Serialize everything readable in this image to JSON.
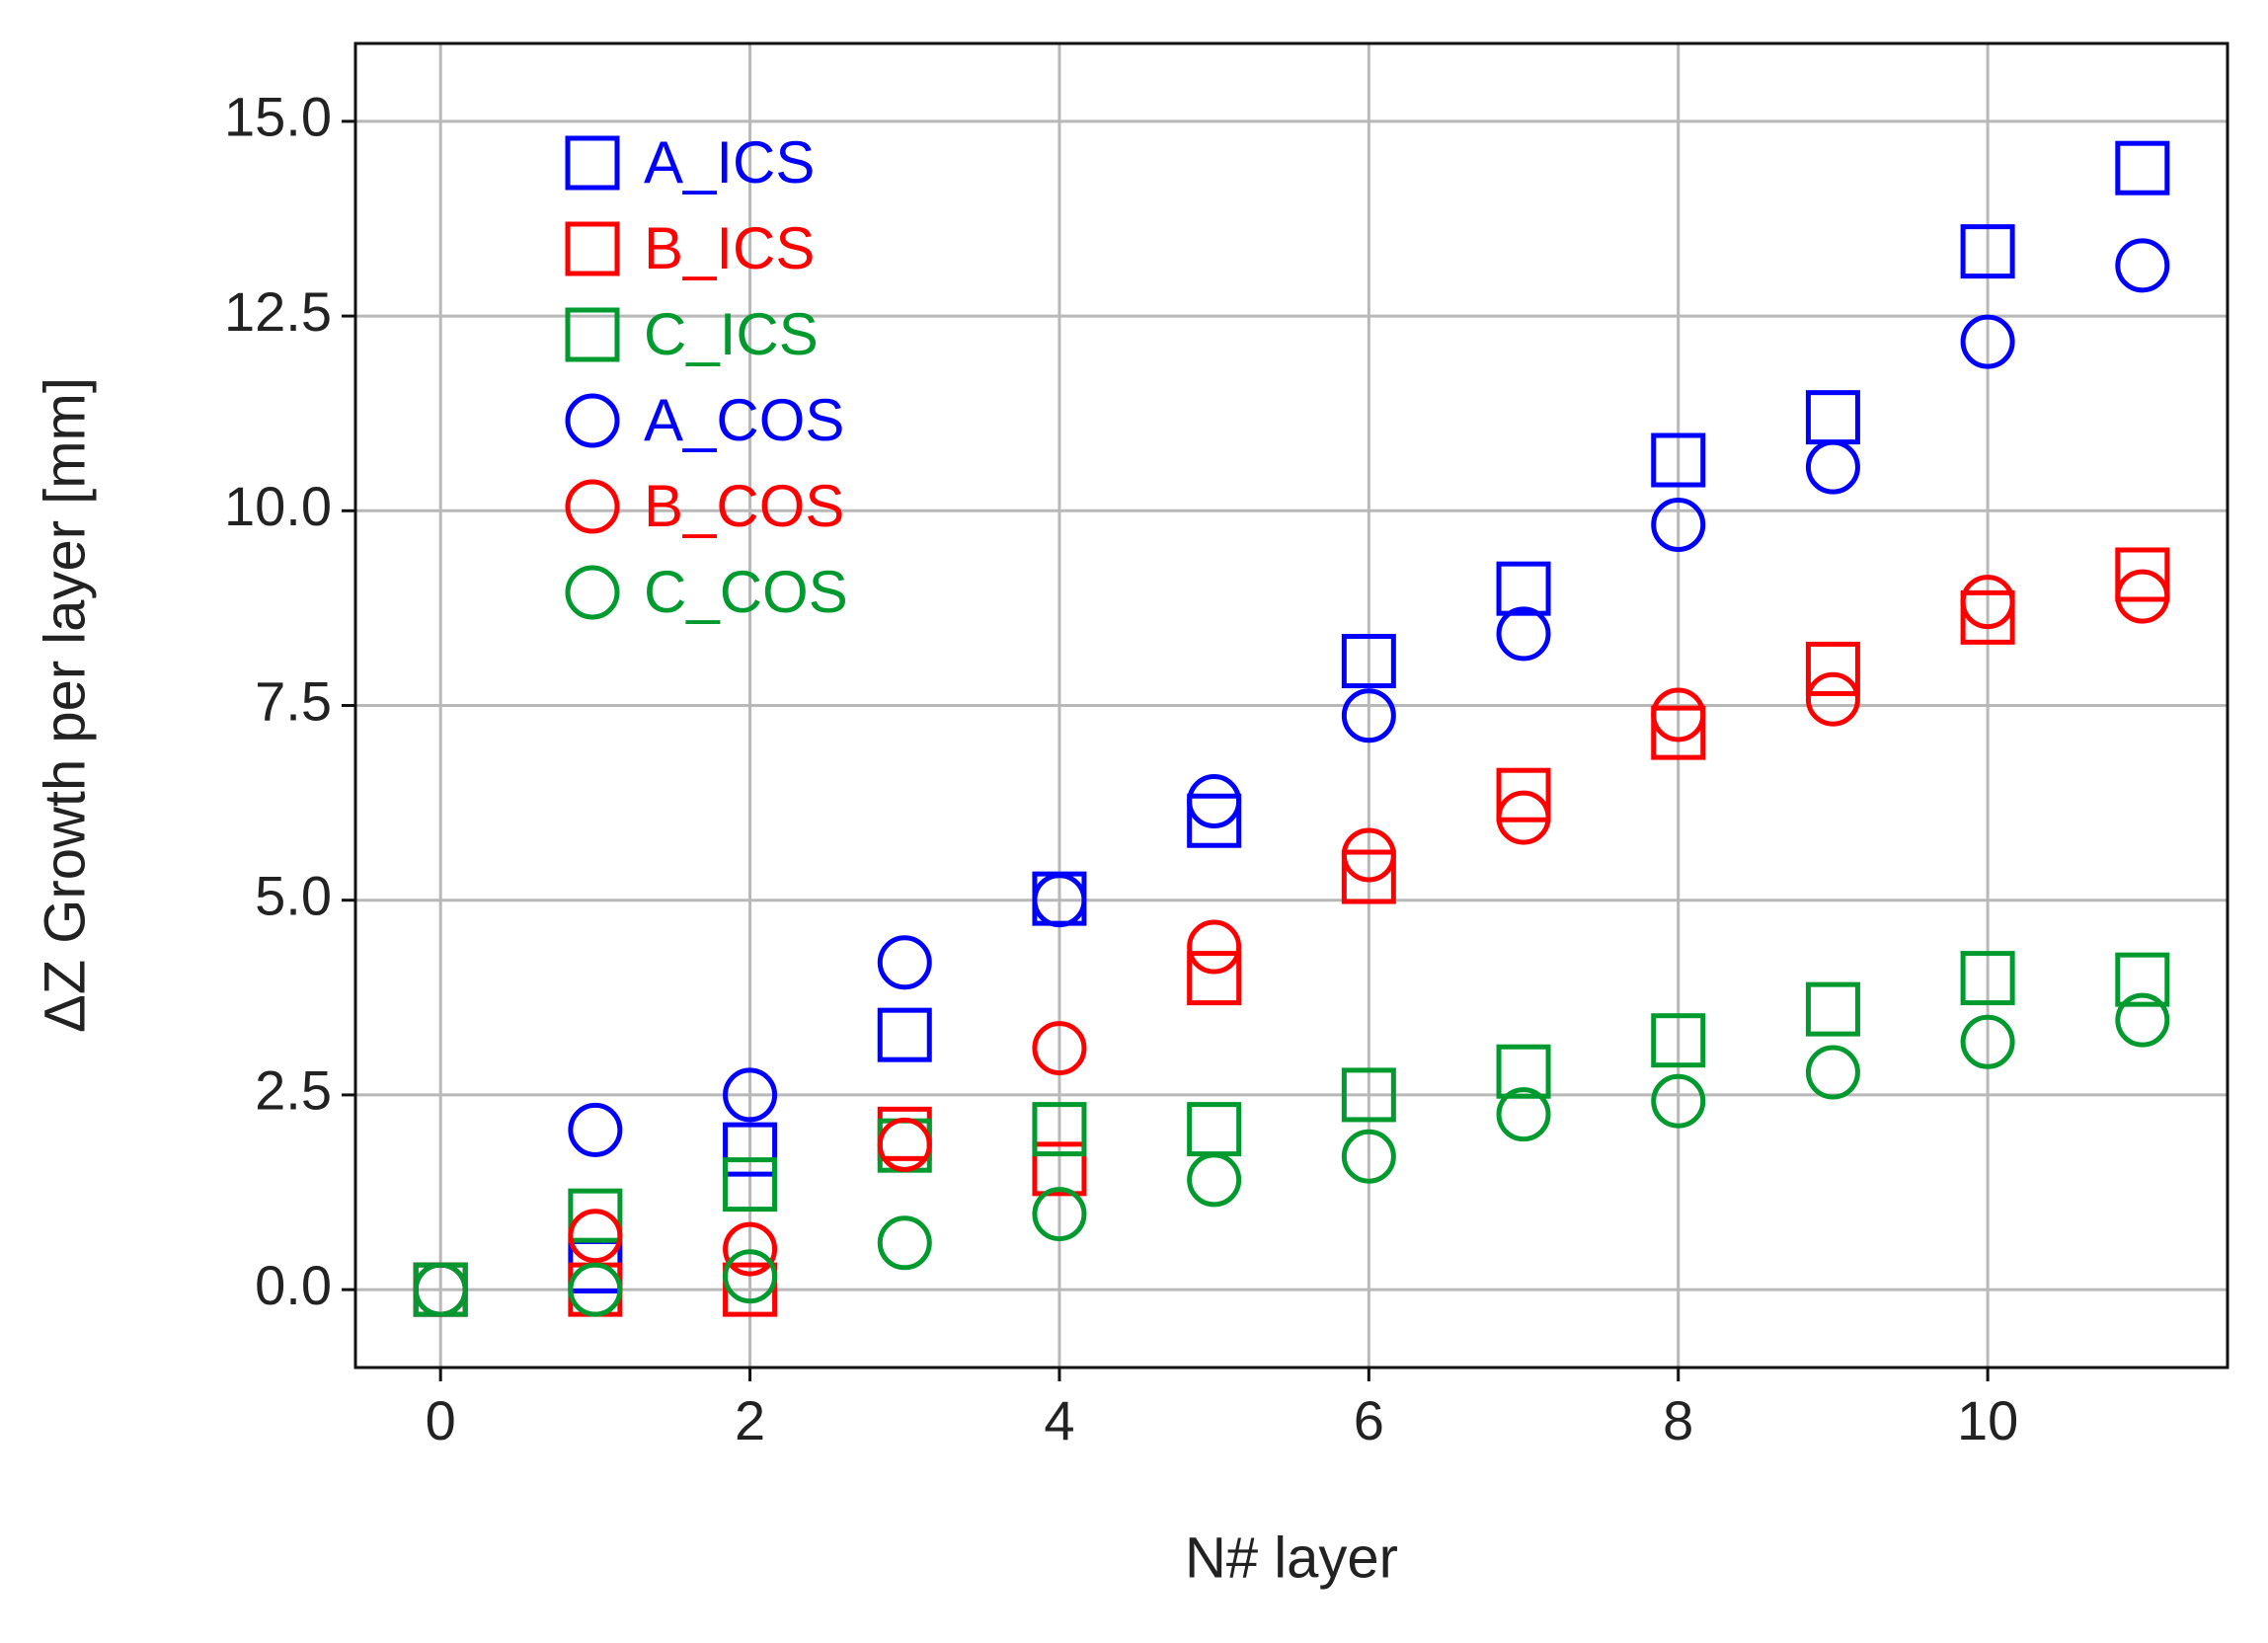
{
  "chart_data": {
    "type": "scatter",
    "x_label": "N# layer",
    "y_label": "ΔZ Growth per layer [mm]",
    "x": [
      0,
      1,
      2,
      3,
      4,
      5,
      6,
      7,
      8,
      9,
      10,
      11
    ],
    "series": [
      {
        "name": "A_ICS",
        "color": "#0000ff",
        "marker": "square",
        "values": [
          0,
          0.3,
          1.8,
          3.27,
          5.02,
          6.02,
          8.07,
          9.0,
          10.65,
          11.2,
          13.33,
          14.4
        ]
      },
      {
        "name": "B_ICS",
        "color": "#ff0000",
        "marker": "square",
        "values": [
          0,
          0,
          0,
          2.0,
          1.55,
          4.0,
          5.3,
          6.35,
          7.15,
          7.97,
          8.63,
          9.18
        ]
      },
      {
        "name": "C_ICS",
        "color": "#009a2e",
        "marker": "square",
        "values": [
          0,
          0.95,
          1.35,
          1.85,
          2.06,
          2.06,
          2.5,
          2.8,
          3.2,
          3.6,
          4.0,
          3.98
        ]
      },
      {
        "name": "A_COS",
        "color": "#0000ff",
        "marker": "circle",
        "values": [
          0,
          2.05,
          2.5,
          4.2,
          5.0,
          6.27,
          7.37,
          8.42,
          9.82,
          10.56,
          12.17,
          13.15
        ]
      },
      {
        "name": "B_COS",
        "color": "#ff0000",
        "marker": "circle",
        "values": [
          0,
          0.69,
          0.52,
          1.86,
          3.1,
          4.4,
          5.58,
          6.06,
          7.38,
          7.58,
          8.83,
          8.9
        ]
      },
      {
        "name": "C_COS",
        "color": "#009a2e",
        "marker": "circle",
        "values": [
          0,
          0,
          0.17,
          0.6,
          0.97,
          1.41,
          1.71,
          2.25,
          2.42,
          2.79,
          3.18,
          3.46
        ]
      }
    ],
    "xlim": [
      -0.55,
      11.55
    ],
    "ylim": [
      -1.0,
      16.0
    ],
    "xticks": [
      0,
      2,
      4,
      6,
      8,
      10
    ],
    "yticks": [
      {
        "value": 0,
        "label": "0.0"
      },
      2.5,
      {
        "value": 5,
        "label": "5.0"
      },
      7.5,
      {
        "value": 10,
        "label": "10.0"
      },
      12.5,
      {
        "value": 15,
        "label": "15.0"
      }
    ],
    "grid": true,
    "legend": "upper left"
  }
}
